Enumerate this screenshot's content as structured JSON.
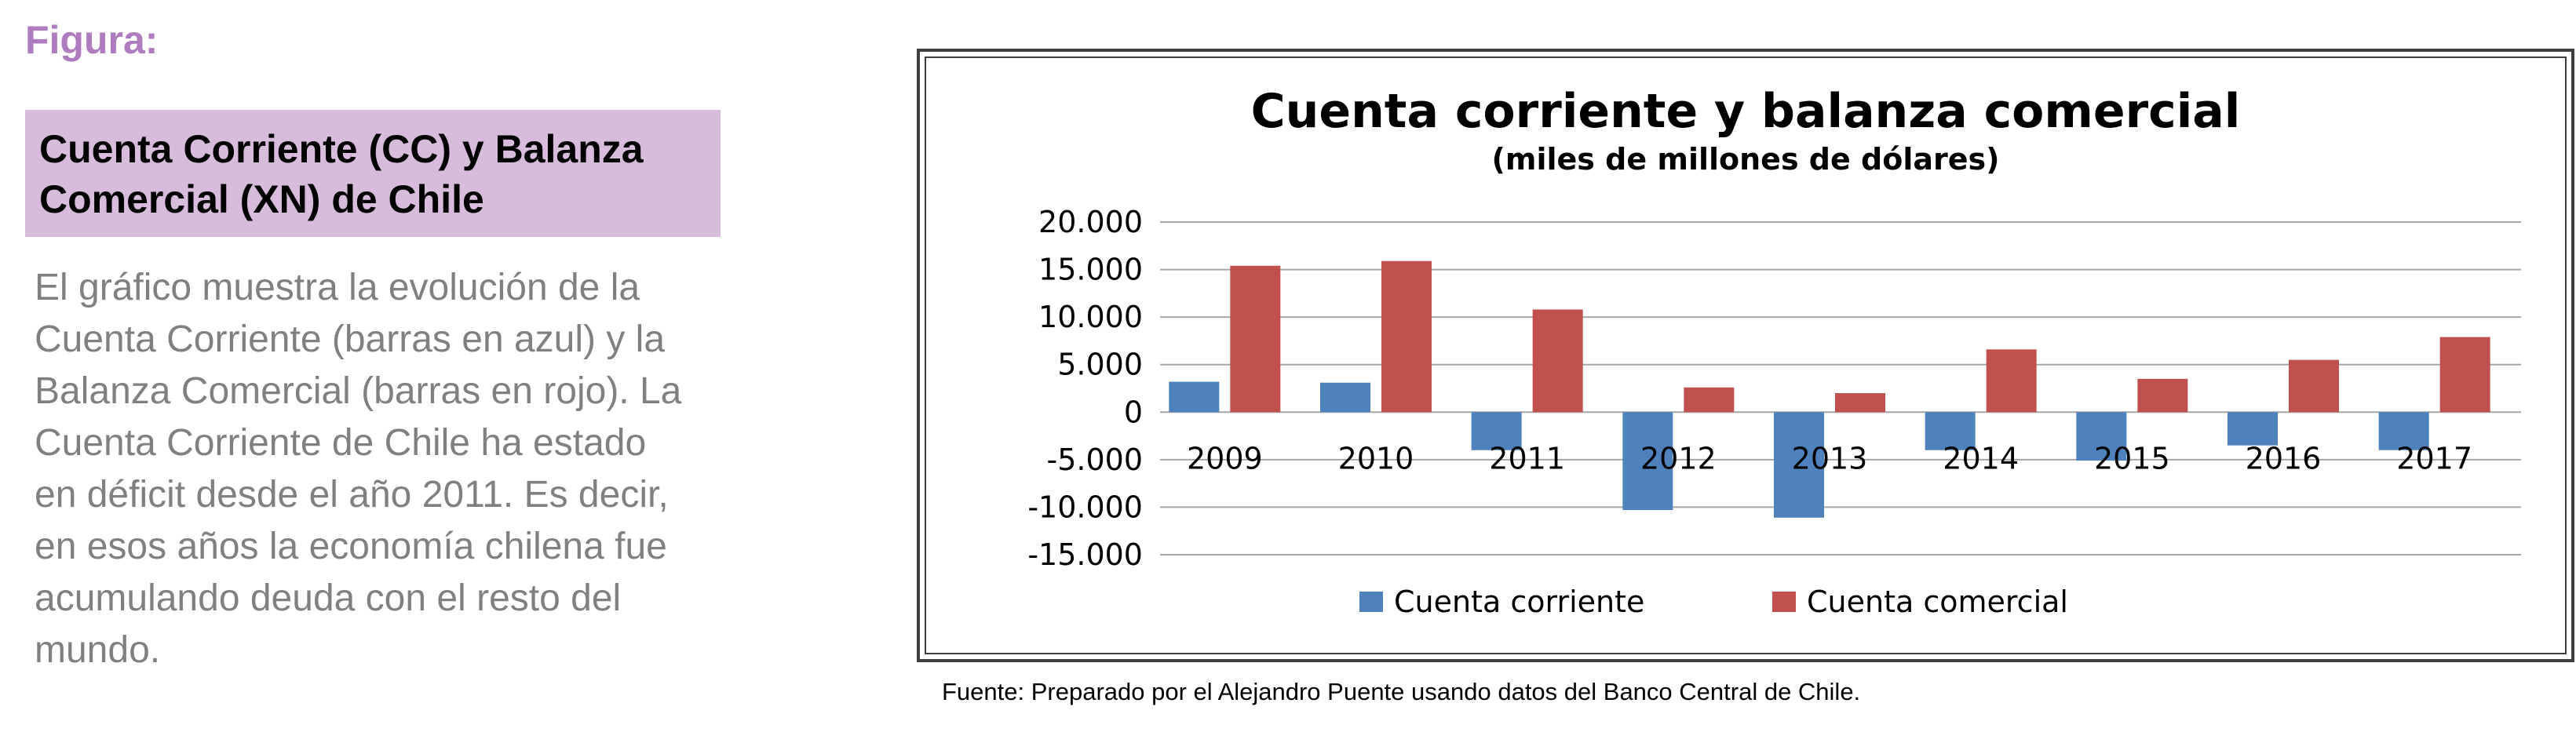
{
  "figure_label": "Figura:",
  "heading": "Cuenta Corriente (CC) y Balanza Comercial (XN) de Chile",
  "description": "El gráfico muestra la evolución de la Cuenta Corriente (barras en azul) y la Balanza Comercial (barras en rojo). La Cuenta Corriente de Chile ha estado en déficit desde el año 2011. Es decir, en esos años la economía chilena fue acumulando deuda con el resto del mundo.",
  "source": "Fuente: Preparado por el Alejandro Puente usando datos del Banco Central de Chile.",
  "colors": {
    "blue": "#4f81bd",
    "red": "#c0504d",
    "gridline": "#a6a6a6"
  },
  "chart_data": {
    "type": "bar",
    "title": "Cuenta corriente y balanza comercial",
    "subtitle": "(miles de millones de dólares)",
    "categories": [
      "2009",
      "2010",
      "2011",
      "2012",
      "2013",
      "2014",
      "2015",
      "2016",
      "2017"
    ],
    "series": [
      {
        "name": "Cuenta corriente",
        "color": "#4f81bd",
        "values": [
          3200,
          3100,
          -4000,
          -10300,
          -11100,
          -4000,
          -5100,
          -3500,
          -4000
        ]
      },
      {
        "name": "Cuenta comercial",
        "color": "#c0504d",
        "values": [
          15400,
          15900,
          10800,
          2600,
          2000,
          6600,
          3500,
          5500,
          7900
        ]
      }
    ],
    "ylim": [
      -15000,
      20000
    ],
    "y_ticks": [
      {
        "value": 20000,
        "label": "20.000"
      },
      {
        "value": 15000,
        "label": "15.000"
      },
      {
        "value": 10000,
        "label": "10.000"
      },
      {
        "value": 5000,
        "label": "5.000"
      },
      {
        "value": 0,
        "label": "0"
      },
      {
        "value": -5000,
        "label": "-5.000"
      },
      {
        "value": -10000,
        "label": "-10.000"
      },
      {
        "value": -15000,
        "label": "-15.000"
      }
    ],
    "grid": true,
    "legend_position": "bottom"
  }
}
